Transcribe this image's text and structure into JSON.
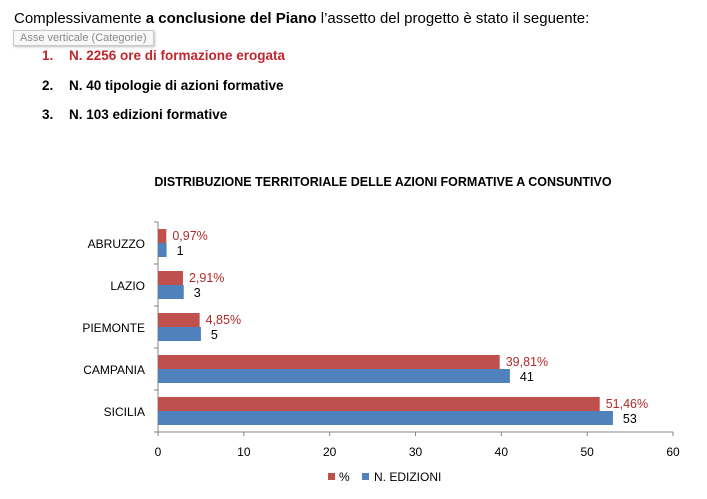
{
  "intro": {
    "part1": "Complessivamente ",
    "bold": "a conclusione del Piano",
    "part2": " l’assetto del progetto è stato il seguente:"
  },
  "tooltip": "Asse verticale (Categorie)",
  "list": [
    {
      "num": "1.",
      "text": "N. 2256 ore di formazione erogata"
    },
    {
      "num": "2.",
      "text": "N. 40 tipologie di azioni formative"
    },
    {
      "num": "3.",
      "text": "N. 103 edizioni formative"
    }
  ],
  "chart_data": {
    "type": "bar",
    "orientation": "horizontal",
    "title": "DISTRIBUZIONE TERRITORIALE DELLE AZIONI FORMATIVE A CONSUNTIVO",
    "categories": [
      "ABRUZZO",
      "LAZIO",
      "PIEMONTE",
      "CAMPANIA",
      "SICILIA"
    ],
    "series": [
      {
        "name": "%",
        "values": [
          0.97,
          2.91,
          4.85,
          39.81,
          51.46
        ],
        "labels": [
          "0,97%",
          "2,91%",
          "4,85%",
          "39,81%",
          "51,46%"
        ],
        "color": "#c0504d"
      },
      {
        "name": "N. EDIZIONI",
        "values": [
          1,
          3,
          5,
          41,
          53
        ],
        "labels": [
          "1",
          "3",
          "5",
          "41",
          "53"
        ],
        "color": "#4f81bd"
      }
    ],
    "xlim": [
      0,
      60
    ],
    "xticks": [
      0,
      10,
      20,
      30,
      40,
      50,
      60
    ],
    "legend": "bottom",
    "label_colors": {
      "pct": "#b02a2a",
      "count": "#000000"
    }
  }
}
